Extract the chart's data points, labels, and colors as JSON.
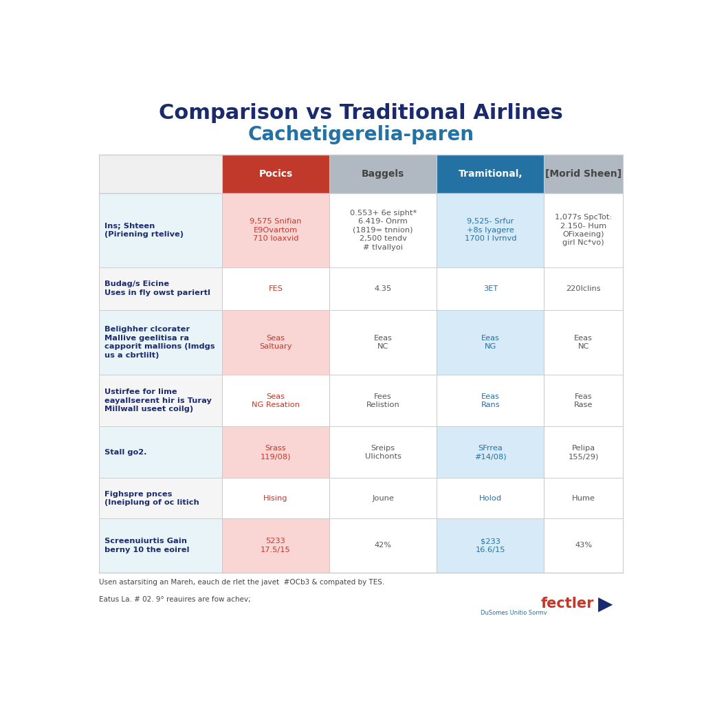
{
  "title1": "Comparison vs Traditional Airlines",
  "title2": "Cachetigerelia-paren",
  "col_headers": [
    "Pocics",
    "Baggels",
    "Tramitional,",
    "[Morid Sheen]"
  ],
  "col_header_colors": [
    "#c0392b",
    "#b0b8c1",
    "#2471a3",
    "#b0b8c1"
  ],
  "col_header_text_colors": [
    "#ffffff",
    "#444444",
    "#ffffff",
    "#444444"
  ],
  "rows": [
    {
      "label": "Ins; Shteen\n(Piriening rtelive)",
      "values": [
        "9,575 Snifian\nE9Ovartom\n710 loaxvid",
        "0.553+ 6e sipht*\n6.419- Onrm\n(1819= tnnion)\n2,500 tendv\n# tlvallyoi",
        "9,525- Srfur\n+8s lyagere\n1700 I Ivrnvd",
        "1,077s SpcTot:\n2.150- Hum\nOFixaeing)\ngirl Nc*vo)"
      ],
      "value_colors": [
        "#c0392b",
        "#555555",
        "#2471a3",
        "#555555"
      ],
      "row_bg": [
        "#f9d5d3",
        "#ffffff",
        "#d6eaf8",
        "#ffffff"
      ],
      "label_bg": "#e8f4f8"
    },
    {
      "label": "Budag/s Eicine\nUses in fly owst pariertl",
      "values": [
        "FES",
        "4.35",
        "3ET",
        "220lclins"
      ],
      "value_colors": [
        "#c0392b",
        "#555555",
        "#2471a3",
        "#555555"
      ],
      "row_bg": [
        "#ffffff",
        "#ffffff",
        "#ffffff",
        "#ffffff"
      ],
      "label_bg": "#f5f5f5"
    },
    {
      "label": "Belighher clcorater\nMallive geelitisa ra\ncapporit mallions (Imdgs\nus a cbrtlilt)",
      "values": [
        "Seas\nSaltuary",
        "Eeas\nNC",
        "Eeas\nNG",
        "Eeas\nNC"
      ],
      "value_colors": [
        "#c0392b",
        "#555555",
        "#2471a3",
        "#555555"
      ],
      "row_bg": [
        "#f9d5d3",
        "#ffffff",
        "#d6eaf8",
        "#ffffff"
      ],
      "label_bg": "#e8f4f8"
    },
    {
      "label": "Ustirfee for lime\neayallserent hir is Turay\nMillwall useet coilg)",
      "values": [
        "Seas\nNG Resation",
        "Fees\nRelistion",
        "Eeas\nRans",
        "Feas\nRase"
      ],
      "value_colors": [
        "#c0392b",
        "#555555",
        "#2471a3",
        "#555555"
      ],
      "row_bg": [
        "#ffffff",
        "#ffffff",
        "#ffffff",
        "#ffffff"
      ],
      "label_bg": "#f5f5f5"
    },
    {
      "label": "Stall go2.",
      "values": [
        "Srass\n119/08)",
        "Sreips\nUlichonts",
        "SFrrea\n#14/08)",
        "Pelipa\n155/29)"
      ],
      "value_colors": [
        "#c0392b",
        "#555555",
        "#2471a3",
        "#555555"
      ],
      "row_bg": [
        "#f9d5d3",
        "#ffffff",
        "#d6eaf8",
        "#ffffff"
      ],
      "label_bg": "#e8f4f8"
    },
    {
      "label": "Fighspre pnces\n(Ineiplung of oc litich",
      "values": [
        "Hising",
        "Joune",
        "Holod",
        "Hume"
      ],
      "value_colors": [
        "#c0392b",
        "#555555",
        "#2471a3",
        "#555555"
      ],
      "row_bg": [
        "#ffffff",
        "#ffffff",
        "#ffffff",
        "#ffffff"
      ],
      "label_bg": "#f5f5f5"
    },
    {
      "label": "Screenuiurtis Gain\nberny 10 the eoirel",
      "values": [
        "5233\n17.5/15",
        "42%",
        "$233\n16.6/15",
        "43%"
      ],
      "value_colors": [
        "#c0392b",
        "#555555",
        "#2471a3",
        "#555555"
      ],
      "row_bg": [
        "#f9d5d3",
        "#ffffff",
        "#d6eaf8",
        "#ffffff"
      ],
      "label_bg": "#e8f4f8"
    }
  ],
  "footer_line1": "Usen astarsiting an Mareh, eauch de rlet the javet  #OCb3 & compated by TES.",
  "footer_line2": "Eatus La. # 02. 9° reauires are fow achev;",
  "bg_color": "#ffffff",
  "border_color": "#cccccc",
  "title1_color": "#1a2a6c",
  "title2_color": "#2471a3"
}
